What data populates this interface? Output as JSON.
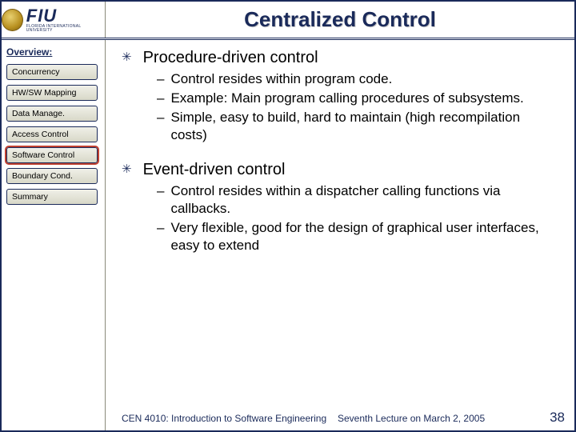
{
  "colors": {
    "brand_navy": "#1a2a5a",
    "highlight_red": "#c04030",
    "button_face_top": "#f0f0e8",
    "button_face_bottom": "#d8d8c8",
    "divider": "#8a8a7a",
    "background": "#ffffff"
  },
  "typography": {
    "title_fontsize": 26,
    "body_fontsize": 17,
    "bullet_fontsize": 20,
    "nav_fontsize": 10.5,
    "footer_fontsize": 12,
    "page_num_fontsize": 17,
    "font_family": "Arial"
  },
  "header": {
    "logo": {
      "acronym": "FIU",
      "subtitle": "FLORIDA INTERNATIONAL UNIVERSITY"
    },
    "title": "Centralized Control"
  },
  "sidebar": {
    "heading": "Overview:",
    "items": [
      {
        "label": "Concurrency",
        "active": false
      },
      {
        "label": "HW/SW Mapping",
        "active": false
      },
      {
        "label": "Data Manage.",
        "active": false
      },
      {
        "label": "Access Control",
        "active": false
      },
      {
        "label": "Software Control",
        "active": true
      },
      {
        "label": "Boundary Cond.",
        "active": false
      },
      {
        "label": "Summary",
        "active": false
      }
    ]
  },
  "content": {
    "bullets": [
      {
        "text": "Procedure-driven control",
        "sub": [
          "Control resides within program code.",
          "Example: Main program calling procedures of subsystems.",
          "Simple, easy to build, hard to maintain (high recompilation costs)"
        ]
      },
      {
        "text": "Event-driven control",
        "sub": [
          "Control resides within a dispatcher calling functions via callbacks.",
          "Very flexible, good for the design of graphical user interfaces, easy to extend"
        ]
      }
    ]
  },
  "footer": {
    "left": "CEN 4010: Introduction to Software Engineering",
    "mid": "Seventh Lecture on March 2, 2005",
    "page": "38"
  }
}
